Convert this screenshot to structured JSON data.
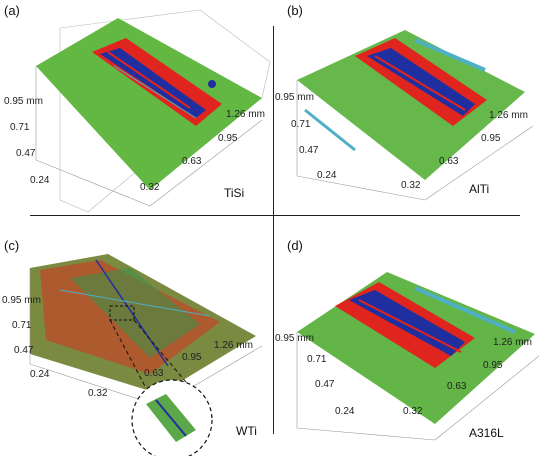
{
  "panels": [
    {
      "label": "(a)",
      "material": "TiSi",
      "ticks_left": [
        "0.95 mm",
        "0.71",
        "0.47",
        "0.24"
      ],
      "ticks_bottom": [
        "0.32",
        "0.63",
        "0.95",
        "1.26 mm"
      ]
    },
    {
      "label": "(b)",
      "material": "AlTi",
      "ticks_left": [
        "0.95 mm",
        "0.71",
        "0.47",
        "0.24"
      ],
      "ticks_bottom": [
        "0.32",
        "0.63",
        "0.95",
        "1.26 mm"
      ]
    },
    {
      "label": "(c)",
      "material": "WTi",
      "ticks_left": [
        "0.95 mm",
        "0.71",
        "0.47",
        "0.24"
      ],
      "ticks_bottom": [
        "0.32",
        "0.63",
        "0.95",
        "1.26 mm"
      ]
    },
    {
      "label": "(d)",
      "material": "A316L",
      "ticks_left": [
        "0.95 mm",
        "0.71",
        "0.47",
        "0.24"
      ],
      "ticks_bottom": [
        "0.32",
        "0.63",
        "0.95",
        "1.26 mm"
      ]
    }
  ],
  "colors": {
    "surface": "#5fb63f",
    "wear": "#e0251f",
    "deep": "#1f2fa0",
    "cyan": "#4bb8c8"
  }
}
